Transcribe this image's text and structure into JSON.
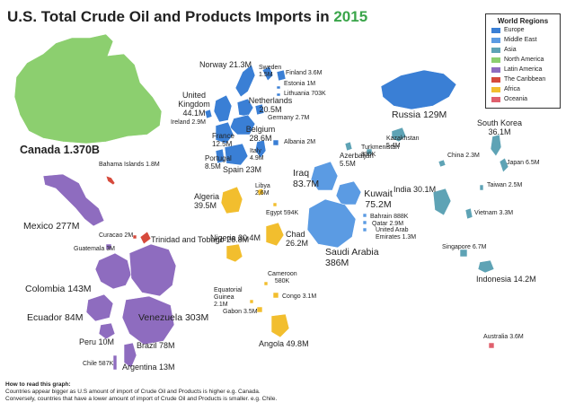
{
  "title": {
    "main": "U.S. Total Crude Oil and Products Imports in",
    "year": "2015"
  },
  "legend": {
    "title": "World Regions",
    "items": [
      {
        "name": "Europe",
        "color": "#3a7fd5"
      },
      {
        "name": "Middle East",
        "color": "#5b9be3"
      },
      {
        "name": "Asia",
        "color": "#5ea3b5"
      },
      {
        "name": "North America",
        "color": "#8ccf6f"
      },
      {
        "name": "Latin America",
        "color": "#8e6cbf"
      },
      {
        "name": "The Caribbean",
        "color": "#d64a3c"
      },
      {
        "name": "Africa",
        "color": "#f2be2e"
      },
      {
        "name": "Oceania",
        "color": "#e0606d"
      }
    ]
  },
  "countries": [
    {
      "name": "Canada",
      "value": "1.370B",
      "region": "North America"
    },
    {
      "name": "Bahama Islands",
      "value": "1.8M",
      "region": "The Caribbean"
    },
    {
      "name": "Mexico",
      "value": "277M",
      "region": "Latin America"
    },
    {
      "name": "Curacao",
      "value": "2M",
      "region": "The Caribbean"
    },
    {
      "name": "Guatemala",
      "value": "3M",
      "region": "Latin America"
    },
    {
      "name": "Trinidad and Tobago",
      "value": "26.8M",
      "region": "The Caribbean"
    },
    {
      "name": "Colombia",
      "value": "143M",
      "region": "Latin America"
    },
    {
      "name": "Ecuador",
      "value": "84M",
      "region": "Latin America"
    },
    {
      "name": "Venezuela",
      "value": "303M",
      "region": "Latin America"
    },
    {
      "name": "Peru",
      "value": "10M",
      "region": "Latin America"
    },
    {
      "name": "Brazil",
      "value": "78M",
      "region": "Latin America"
    },
    {
      "name": "Chile",
      "value": "587K",
      "region": "Latin America"
    },
    {
      "name": "Argentina",
      "value": "13M",
      "region": "Latin America"
    },
    {
      "name": "Norway",
      "value": "21.3M",
      "region": "Europe"
    },
    {
      "name": "Sweden",
      "value": "1.5M",
      "region": "Europe"
    },
    {
      "name": "Finland",
      "value": "3.6M",
      "region": "Europe"
    },
    {
      "name": "Estonia",
      "value": "1M",
      "region": "Europe"
    },
    {
      "name": "Lithuania",
      "value": "703K",
      "region": "Europe"
    },
    {
      "name": "United Kingdom",
      "value": "44.1M",
      "region": "Europe"
    },
    {
      "name": "Ireland",
      "value": "2.9M",
      "region": "Europe"
    },
    {
      "name": "Netherlands",
      "value": "20.5M",
      "region": "Europe"
    },
    {
      "name": "Germany",
      "value": "2.7M",
      "region": "Europe"
    },
    {
      "name": "Belgium",
      "value": "28.6M",
      "region": "Europe"
    },
    {
      "name": "France",
      "value": "12.5M",
      "region": "Europe"
    },
    {
      "name": "Albania",
      "value": "2M",
      "region": "Europe"
    },
    {
      "name": "Italy",
      "value": "4.9M",
      "region": "Europe"
    },
    {
      "name": "Portugal",
      "value": "8.5M",
      "region": "Europe"
    },
    {
      "name": "Spain",
      "value": "23M",
      "region": "Europe"
    },
    {
      "name": "Russia",
      "value": "129M",
      "region": "Europe"
    },
    {
      "name": "Algeria",
      "value": "39.5M",
      "region": "Africa"
    },
    {
      "name": "Libya",
      "value": "2.6M",
      "region": "Africa"
    },
    {
      "name": "Egypt",
      "value": "594K",
      "region": "Africa"
    },
    {
      "name": "Nigeria",
      "value": "30.4M",
      "region": "Africa"
    },
    {
      "name": "Chad",
      "value": "26.2M",
      "region": "Africa"
    },
    {
      "name": "Cameroon",
      "value": "580K",
      "region": "Africa"
    },
    {
      "name": "Equatorial Guinea",
      "value": "2.1M",
      "region": "Africa"
    },
    {
      "name": "Congo",
      "value": "3.1M",
      "region": "Africa"
    },
    {
      "name": "Gabon",
      "value": "3.5M",
      "region": "Africa"
    },
    {
      "name": "Angola",
      "value": "49.8M",
      "region": "Africa"
    },
    {
      "name": "Iraq",
      "value": "83.7M",
      "region": "Middle East"
    },
    {
      "name": "Kuwait",
      "value": "75.2M",
      "region": "Middle East"
    },
    {
      "name": "Saudi Arabia",
      "value": "386M",
      "region": "Middle East"
    },
    {
      "name": "Bahrain",
      "value": "888K",
      "region": "Middle East"
    },
    {
      "name": "Qatar",
      "value": "2.9M",
      "region": "Middle East"
    },
    {
      "name": "United Arab Emirates",
      "value": "1.3M",
      "region": "Middle East"
    },
    {
      "name": "Azerbaijan",
      "value": "5.5M",
      "region": "Asia"
    },
    {
      "name": "Turkmenistan",
      "value": "830K",
      "region": "Asia"
    },
    {
      "name": "Kazakhstan",
      "value": "5.4M",
      "region": "Asia"
    },
    {
      "name": "South Korea",
      "value": "36.1M",
      "region": "Asia"
    },
    {
      "name": "China",
      "value": "2.3M",
      "region": "Asia"
    },
    {
      "name": "Japan",
      "value": "6.5M",
      "region": "Asia"
    },
    {
      "name": "India",
      "value": "30.1M",
      "region": "Asia"
    },
    {
      "name": "Taiwan",
      "value": "2.5M",
      "region": "Asia"
    },
    {
      "name": "Vietnam",
      "value": "3.3M",
      "region": "Asia"
    },
    {
      "name": "Singapore",
      "value": "6.7M",
      "region": "Asia"
    },
    {
      "name": "Indonesia",
      "value": "14.2M",
      "region": "Asia"
    },
    {
      "name": "Australia",
      "value": "3.6M",
      "region": "Oceania"
    }
  ],
  "note": {
    "heading": "How to read this graph:",
    "line1": "Countries appear bigger as U.S amount of import of Crude Oil and Products is higher e.g. Canada.",
    "line2": "Conversely, countries that have a lower amount of import of Crude Oil and Products is smaller. e.g. Chile."
  }
}
